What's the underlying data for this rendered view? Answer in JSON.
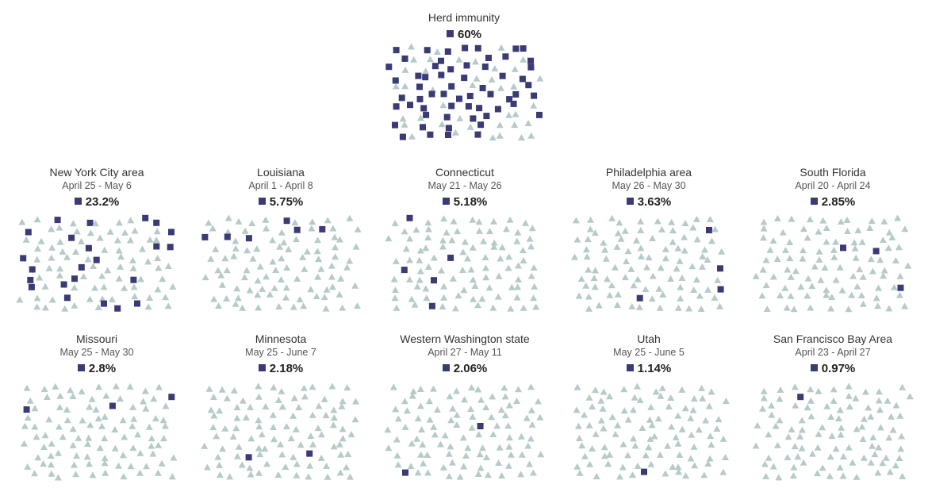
{
  "colors": {
    "immune": "#3a3b74",
    "susceptible": "#b6cbc9"
  },
  "chart_data": {
    "type": "unit-grid",
    "units_per_panel": 100,
    "panels": [
      {
        "label": "Herd immunity",
        "date": "",
        "value": 60,
        "value_label": "60%"
      },
      {
        "label": "New York City area",
        "date": "April 25 - May 6",
        "value": 23.2,
        "value_label": "23.2%"
      },
      {
        "label": "Louisiana",
        "date": "April 1 - April 8",
        "value": 5.75,
        "value_label": "5.75%"
      },
      {
        "label": "Connecticut",
        "date": "May 21 - May 26",
        "value": 5.18,
        "value_label": "5.18%"
      },
      {
        "label": "Philadelphia area",
        "date": "May 26 - May 30",
        "value": 3.63,
        "value_label": "3.63%"
      },
      {
        "label": "South Florida",
        "date": "April 20 - April 24",
        "value": 2.85,
        "value_label": "2.85%"
      },
      {
        "label": "Missouri",
        "date": "May 25 - May 30",
        "value": 2.8,
        "value_label": "2.8%"
      },
      {
        "label": "Minnesota",
        "date": "May 25 - June 7",
        "value": 2.18,
        "value_label": "2.18%"
      },
      {
        "label": "Western Washington state",
        "date": "April 27 - May 11",
        "value": 2.06,
        "value_label": "2.06%"
      },
      {
        "label": "Utah",
        "date": "May 25 - June 5",
        "value": 1.14,
        "value_label": "1.14%"
      },
      {
        "label": "San Francisco Bay Area",
        "date": "April 23 - April 27",
        "value": 0.97,
        "value_label": "0.97%"
      }
    ]
  }
}
